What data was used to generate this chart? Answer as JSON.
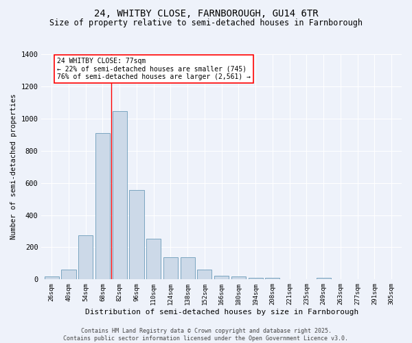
{
  "title": "24, WHITBY CLOSE, FARNBOROUGH, GU14 6TR",
  "subtitle": "Size of property relative to semi-detached houses in Farnborough",
  "xlabel": "Distribution of semi-detached houses by size in Farnborough",
  "ylabel": "Number of semi-detached properties",
  "categories": [
    "26sqm",
    "40sqm",
    "54sqm",
    "68sqm",
    "82sqm",
    "96sqm",
    "110sqm",
    "124sqm",
    "138sqm",
    "152sqm",
    "166sqm",
    "180sqm",
    "194sqm",
    "208sqm",
    "221sqm",
    "235sqm",
    "249sqm",
    "263sqm",
    "277sqm",
    "291sqm",
    "305sqm"
  ],
  "values": [
    18,
    62,
    275,
    910,
    1045,
    555,
    255,
    140,
    140,
    62,
    22,
    18,
    10,
    10,
    0,
    0,
    10,
    0,
    0,
    0,
    0
  ],
  "bar_color": "#ccd9e8",
  "bar_edge_color": "#6a9ab8",
  "red_line_x": 3.5,
  "annotation_title": "24 WHITBY CLOSE: 77sqm",
  "annotation_line1": "← 22% of semi-detached houses are smaller (745)",
  "annotation_line2": "76% of semi-detached houses are larger (2,561) →",
  "footer1": "Contains HM Land Registry data © Crown copyright and database right 2025.",
  "footer2": "Contains public sector information licensed under the Open Government Licence v3.0.",
  "bg_color": "#eef2fa",
  "ylim": [
    0,
    1400
  ],
  "title_fontsize": 10,
  "subtitle_fontsize": 8.5
}
